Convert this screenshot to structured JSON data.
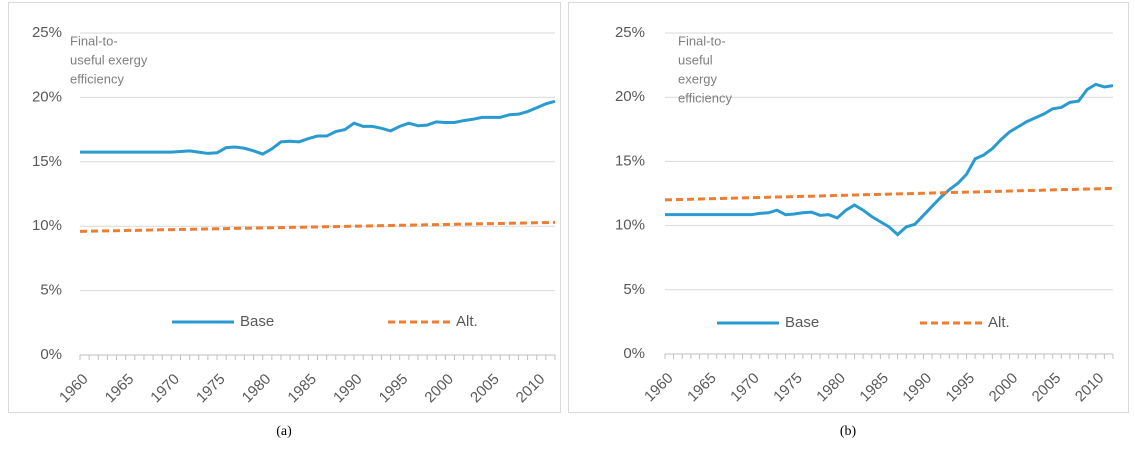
{
  "chart_data": [
    {
      "type": "line",
      "caption": "(a)",
      "annotation": [
        "Final-to-",
        "useful exergy",
        "efficiency"
      ],
      "x": [
        1960,
        1961,
        1962,
        1963,
        1964,
        1965,
        1966,
        1967,
        1968,
        1969,
        1970,
        1971,
        1972,
        1973,
        1974,
        1975,
        1976,
        1977,
        1978,
        1979,
        1980,
        1981,
        1982,
        1983,
        1984,
        1985,
        1986,
        1987,
        1988,
        1989,
        1990,
        1991,
        1992,
        1993,
        1994,
        1995,
        1996,
        1997,
        1998,
        1999,
        2000,
        2001,
        2002,
        2003,
        2004,
        2005,
        2006,
        2007,
        2008,
        2009,
        2010,
        2011,
        2012
      ],
      "xlim": [
        1960,
        2012
      ],
      "xticks": [
        1960,
        1965,
        1970,
        1975,
        1980,
        1985,
        1990,
        1995,
        2000,
        2005,
        2010
      ],
      "ylim": [
        0,
        25
      ],
      "yticks": [
        {
          "value": 0,
          "label": "0%"
        },
        {
          "value": 5,
          "label": "5%"
        },
        {
          "value": 10,
          "label": "10%"
        },
        {
          "value": 15,
          "label": "15%"
        },
        {
          "value": 20,
          "label": "20%"
        },
        {
          "value": 25,
          "label": "25%"
        }
      ],
      "grid": true,
      "series": [
        {
          "name": "Base",
          "color": "#2a9bd0",
          "linestyle": "solid",
          "values": [
            15.75,
            15.75,
            15.75,
            15.75,
            15.75,
            15.75,
            15.75,
            15.75,
            15.75,
            15.75,
            15.75,
            15.8,
            15.85,
            15.75,
            15.65,
            15.7,
            16.1,
            16.15,
            16.05,
            15.85,
            15.6,
            16.0,
            16.55,
            16.6,
            16.55,
            16.8,
            17.0,
            17.0,
            17.35,
            17.5,
            18.0,
            17.75,
            17.75,
            17.6,
            17.4,
            17.75,
            18.0,
            17.8,
            17.85,
            18.1,
            18.05,
            18.05,
            18.2,
            18.3,
            18.45,
            18.45,
            18.45,
            18.65,
            18.7,
            18.9,
            19.2,
            19.5,
            19.7
          ]
        },
        {
          "name": "Alt.",
          "color": "#ed7d31",
          "linestyle": "dashed",
          "values": [
            9.6,
            9.61,
            9.63,
            9.64,
            9.65,
            9.67,
            9.68,
            9.69,
            9.71,
            9.72,
            9.73,
            9.75,
            9.76,
            9.77,
            9.79,
            9.8,
            9.81,
            9.83,
            9.84,
            9.85,
            9.87,
            9.88,
            9.89,
            9.91,
            9.92,
            9.93,
            9.95,
            9.96,
            9.97,
            9.99,
            10.0,
            10.01,
            10.03,
            10.04,
            10.05,
            10.07,
            10.08,
            10.09,
            10.11,
            10.12,
            10.13,
            10.15,
            10.16,
            10.17,
            10.19,
            10.2,
            10.21,
            10.23,
            10.24,
            10.25,
            10.27,
            10.28,
            10.3
          ]
        }
      ]
    },
    {
      "type": "line",
      "caption": "(b)",
      "annotation": [
        "Final-to-",
        "useful",
        "exergy",
        "efficiency"
      ],
      "x": [
        1960,
        1961,
        1962,
        1963,
        1964,
        1965,
        1966,
        1967,
        1968,
        1969,
        1970,
        1971,
        1972,
        1973,
        1974,
        1975,
        1976,
        1977,
        1978,
        1979,
        1980,
        1981,
        1982,
        1983,
        1984,
        1985,
        1986,
        1987,
        1988,
        1989,
        1990,
        1991,
        1992,
        1993,
        1994,
        1995,
        1996,
        1997,
        1998,
        1999,
        2000,
        2001,
        2002,
        2003,
        2004,
        2005,
        2006,
        2007,
        2008,
        2009,
        2010,
        2011,
        2012
      ],
      "xlim": [
        1960,
        2012
      ],
      "xticks": [
        1960,
        1965,
        1970,
        1975,
        1980,
        1985,
        1990,
        1995,
        2000,
        2005,
        2010
      ],
      "ylim": [
        0,
        25
      ],
      "yticks": [
        {
          "value": 0,
          "label": "0%"
        },
        {
          "value": 5,
          "label": "5%"
        },
        {
          "value": 10,
          "label": "10%"
        },
        {
          "value": 15,
          "label": "15%"
        },
        {
          "value": 20,
          "label": "20%"
        },
        {
          "value": 25,
          "label": "25%"
        }
      ],
      "grid": true,
      "series": [
        {
          "name": "Base",
          "color": "#2a9bd0",
          "linestyle": "solid",
          "values": [
            10.85,
            10.85,
            10.85,
            10.85,
            10.85,
            10.85,
            10.85,
            10.85,
            10.85,
            10.85,
            10.85,
            10.95,
            11.0,
            11.2,
            10.85,
            10.9,
            11.0,
            11.05,
            10.8,
            10.85,
            10.6,
            11.2,
            11.6,
            11.2,
            10.7,
            10.3,
            9.9,
            9.3,
            9.9,
            10.1,
            10.8,
            11.5,
            12.2,
            12.8,
            13.3,
            14.0,
            15.2,
            15.5,
            16.0,
            16.7,
            17.3,
            17.7,
            18.1,
            18.4,
            18.7,
            19.1,
            19.2,
            19.6,
            19.7,
            20.6,
            21.0,
            20.8,
            20.9
          ]
        },
        {
          "name": "Alt.",
          "color": "#ed7d31",
          "linestyle": "dashed",
          "values": [
            12.0,
            12.02,
            12.03,
            12.05,
            12.07,
            12.09,
            12.1,
            12.12,
            12.14,
            12.16,
            12.17,
            12.19,
            12.21,
            12.23,
            12.24,
            12.26,
            12.28,
            12.29,
            12.31,
            12.33,
            12.35,
            12.36,
            12.38,
            12.4,
            12.42,
            12.43,
            12.45,
            12.47,
            12.48,
            12.5,
            12.52,
            12.54,
            12.55,
            12.57,
            12.59,
            12.61,
            12.62,
            12.64,
            12.66,
            12.67,
            12.69,
            12.71,
            12.73,
            12.74,
            12.76,
            12.78,
            12.8,
            12.81,
            12.83,
            12.85,
            12.86,
            12.88,
            12.9
          ]
        }
      ]
    }
  ]
}
